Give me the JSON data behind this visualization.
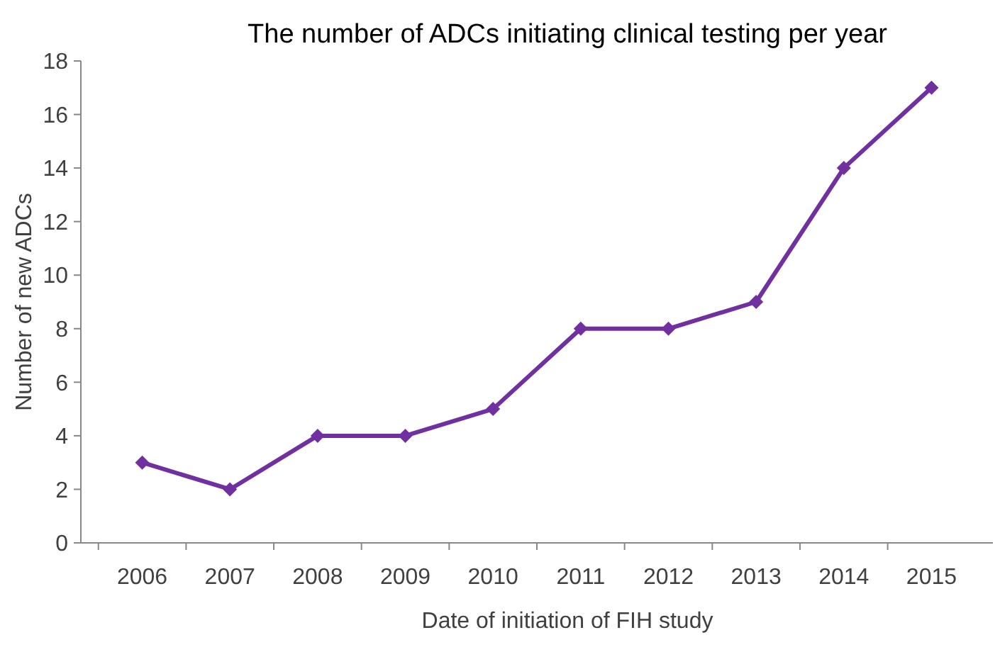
{
  "chart_data": {
    "type": "line",
    "title": "The number of ADCs initiating clinical testing per year",
    "xlabel": "Date of initiation of FIH study",
    "ylabel": "Number of new ADCs",
    "categories": [
      "2006",
      "2007",
      "2008",
      "2009",
      "2010",
      "2011",
      "2012",
      "2013",
      "2014",
      "2015"
    ],
    "series": [
      {
        "color": "#7030a0",
        "values": [
          3,
          2,
          4,
          4,
          5,
          8,
          8,
          9,
          14,
          17
        ]
      }
    ],
    "ylim": [
      0,
      18
    ],
    "yticks": [
      0,
      2,
      4,
      6,
      8,
      10,
      12,
      14,
      16,
      18
    ],
    "grid": false,
    "marker": "diamond",
    "line_style": "solid"
  }
}
